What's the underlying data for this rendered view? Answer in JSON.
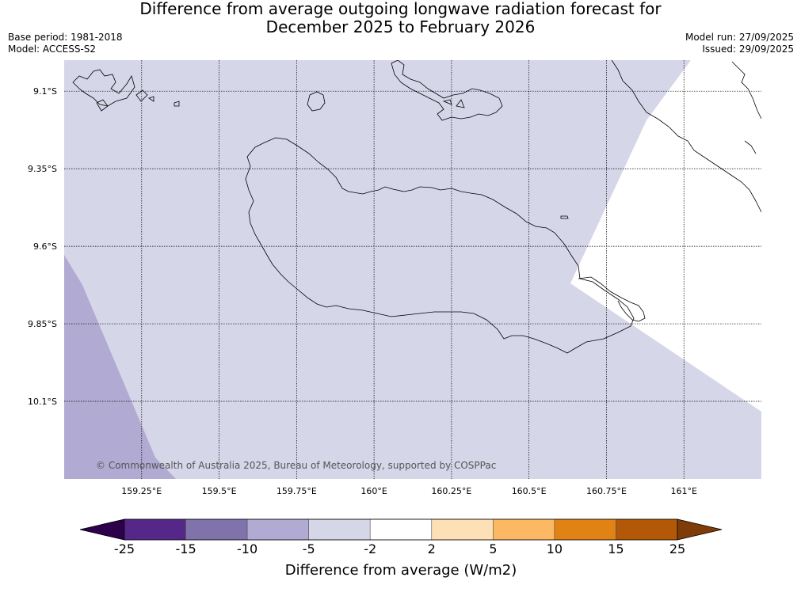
{
  "title": {
    "line1": "Difference from average outgoing longwave radiation forecast for",
    "line2": "December 2025 to February 2026"
  },
  "meta": {
    "base_period": "Base period: 1981-2018",
    "model": "Model: ACCESS-S2",
    "model_run": "Model run: 27/09/2025",
    "issued": "Issued: 29/09/2025"
  },
  "map": {
    "lon_range": [
      159.0,
      161.25
    ],
    "lat_range": [
      -10.35,
      -9.0
    ],
    "lon_ticks": [
      {
        "value": 159.25,
        "label": "159.25°E"
      },
      {
        "value": 159.5,
        "label": "159.5°E"
      },
      {
        "value": 159.75,
        "label": "159.75°E"
      },
      {
        "value": 160.0,
        "label": "160°E"
      },
      {
        "value": 160.25,
        "label": "160.25°E"
      },
      {
        "value": 160.5,
        "label": "160.5°E"
      },
      {
        "value": 160.75,
        "label": "160.75°E"
      },
      {
        "value": 161.0,
        "label": "161°E"
      }
    ],
    "lat_ticks": [
      {
        "value": -9.1,
        "label": "9.1°S"
      },
      {
        "value": -9.35,
        "label": "9.35°S"
      },
      {
        "value": -9.6,
        "label": "9.6°S"
      },
      {
        "value": -9.85,
        "label": "9.85°S"
      },
      {
        "value": -10.1,
        "label": "10.1°S"
      }
    ],
    "grid": true,
    "copyright": "© Commonwealth of Australia 2025, Bureau of Meteorology, supported by COSPPac",
    "colors": {
      "band_-5_-2": "#d6d6e9",
      "band_-10_-5": "#b1abd3",
      "band_-2_2": "#ffffff"
    }
  },
  "colorbar": {
    "title": "Difference from average (W/m2)",
    "ticks": [
      "-25",
      "-15",
      "-10",
      "-5",
      "-2",
      "2",
      "5",
      "10",
      "15",
      "25"
    ],
    "colors": [
      "#552788",
      "#8073ac",
      "#b1abd3",
      "#d6d6e9",
      "#ffffff",
      "#fee0b6",
      "#fdb863",
      "#e08214",
      "#b35806"
    ],
    "under_color": "#2d004b",
    "over_color": "#7f3b08"
  }
}
